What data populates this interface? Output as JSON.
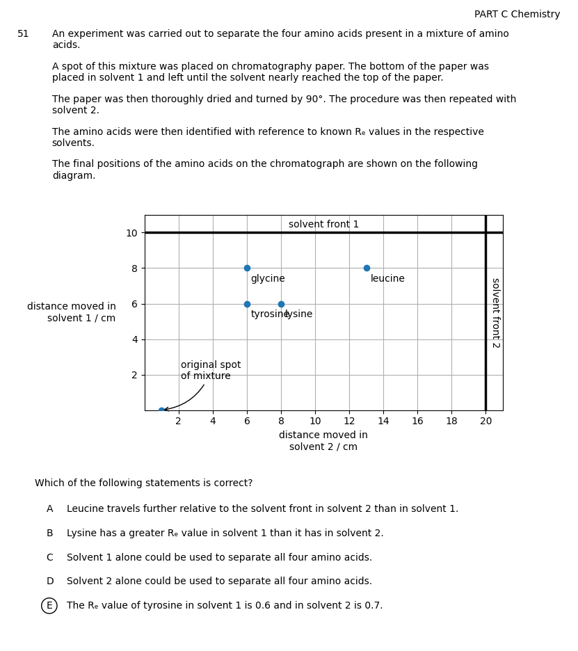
{
  "chart_data": {
    "type": "scatter",
    "header": "PART C Chemistry",
    "question_number": "51",
    "paragraphs": [
      "An experiment was carried out to separate the four amino acids present in a mixture of amino\nacids.",
      "A spot of this mixture was placed on chromatography paper. The bottom of the paper was\nplaced in solvent 1 and left until the solvent nearly reached the top of the paper.",
      "The paper was then thoroughly dried and turned by 90°. The procedure was then repeated with\nsolvent 2.",
      "The amino acids were then identified with reference to known Rₑ values in the respective\nsolvents.",
      "The final positions of the amino acids on the chromatograph are shown on the following\ndiagram."
    ],
    "xlabel": "distance moved in\nsolvent 2 / cm",
    "ylabel": "distance moved in\nsolvent 1 / cm",
    "xlim": [
      0,
      21
    ],
    "ylim": [
      0,
      11
    ],
    "xticks": [
      2,
      4,
      6,
      8,
      10,
      12,
      14,
      16,
      18,
      20
    ],
    "yticks": [
      2,
      4,
      6,
      8,
      10
    ],
    "grid": true,
    "x": [
      6,
      6,
      8,
      13,
      1
    ],
    "values": [
      8,
      6,
      6,
      8,
      0
    ],
    "point_labels": [
      "glycine",
      "tyrosine",
      "lysine",
      "leucine",
      null
    ],
    "lines": [
      {
        "label": "solvent front 1",
        "y": 10
      },
      {
        "label": "solvent front 2",
        "x": 20
      }
    ],
    "annotations": [
      {
        "text": "original spot\nof mixture",
        "x": 1,
        "y": 0
      }
    ],
    "question": "Which of the following statements is correct?",
    "options": [
      {
        "letter": "A",
        "text": "Leucine travels further relative to the solvent front in solvent 2 than in solvent 1."
      },
      {
        "letter": "B",
        "text": "Lysine has a greater Rₑ value in solvent 1 than it has in solvent 2."
      },
      {
        "letter": "C",
        "text": "Solvent 1 alone could be used to separate all four amino acids."
      },
      {
        "letter": "D",
        "text": "Solvent 2 alone could be used to separate all four amino acids."
      },
      {
        "letter": "E",
        "text": "The Rₑ value of tyrosine in solvent 1 is 0.6 and in solvent 2 is 0.7."
      }
    ],
    "marked_option": "E"
  }
}
